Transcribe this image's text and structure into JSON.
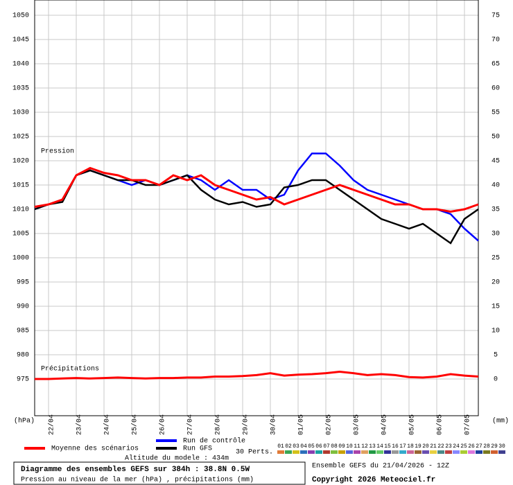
{
  "chart_data": {
    "type": "line",
    "title": "Diagramme des ensembles GEFS sur 384h : 38.8N 0.5W",
    "subtitle": "Pression au niveau de la mer (hPa) , précipitations (mm)",
    "run_label": "Ensemble GEFS du 21/04/2026 - 12Z",
    "copyright": "Copyright 2026 Meteociel.fr",
    "altitude": "Altitude du modele : 434m",
    "y_label": "(hPa)",
    "y2_label": "(mm)",
    "annotations": [
      "Pression",
      "Précipitations"
    ],
    "perturbations_label": "30 Perts.",
    "perturbations": [
      {
        "label": "01",
        "color": "#e07b39"
      },
      {
        "label": "02",
        "color": "#3aa655"
      },
      {
        "label": "03",
        "color": "#d4c21a"
      },
      {
        "label": "04",
        "color": "#2c6fbb"
      },
      {
        "label": "05",
        "color": "#8a3fb0"
      },
      {
        "label": "06",
        "color": "#1aa3a3"
      },
      {
        "label": "07",
        "color": "#b03a2e"
      },
      {
        "label": "08",
        "color": "#7fbf3f"
      },
      {
        "label": "09",
        "color": "#c8a000"
      },
      {
        "label": "10",
        "color": "#5566dd"
      },
      {
        "label": "11",
        "color": "#aa44aa"
      },
      {
        "label": "12",
        "color": "#e0a060"
      },
      {
        "label": "13",
        "color": "#229944"
      },
      {
        "label": "14",
        "color": "#66cc66"
      },
      {
        "label": "15",
        "color": "#333399"
      },
      {
        "label": "16",
        "color": "#999999"
      },
      {
        "label": "17",
        "color": "#33aacc"
      },
      {
        "label": "18",
        "color": "#cc6699"
      },
      {
        "label": "19",
        "color": "#996633"
      },
      {
        "label": "20",
        "color": "#6a4fb0"
      },
      {
        "label": "21",
        "color": "#e8d040"
      },
      {
        "label": "22",
        "color": "#4a8a8a"
      },
      {
        "label": "23",
        "color": "#c04040"
      },
      {
        "label": "24",
        "color": "#8888ff"
      },
      {
        "label": "25",
        "color": "#aacc33"
      },
      {
        "label": "26",
        "color": "#dd77dd"
      },
      {
        "label": "27",
        "color": "#1f3f9f"
      },
      {
        "label": "28",
        "color": "#7a7a20"
      },
      {
        "label": "29",
        "color": "#d06030"
      },
      {
        "label": "30",
        "color": "#404090"
      }
    ],
    "x": [
      0,
      12,
      24,
      36,
      48,
      60,
      72,
      84,
      96,
      108,
      120,
      132,
      144,
      156,
      168,
      180,
      192,
      204,
      216,
      228,
      240,
      252,
      264,
      276,
      288,
      300,
      312,
      324,
      336,
      348,
      360,
      372,
      384
    ],
    "xlim": [
      0,
      384
    ],
    "xticks": [
      {
        "value": 12,
        "label": "22/04"
      },
      {
        "value": 36,
        "label": "23/04"
      },
      {
        "value": 60,
        "label": "24/04"
      },
      {
        "value": 84,
        "label": "25/04"
      },
      {
        "value": 108,
        "label": "26/04"
      },
      {
        "value": 132,
        "label": "27/04"
      },
      {
        "value": 156,
        "label": "28/04"
      },
      {
        "value": 180,
        "label": "29/04"
      },
      {
        "value": 204,
        "label": "30/04"
      },
      {
        "value": 228,
        "label": "01/05"
      },
      {
        "value": 252,
        "label": "02/05"
      },
      {
        "value": 276,
        "label": "03/05"
      },
      {
        "value": 300,
        "label": "04/05"
      },
      {
        "value": 324,
        "label": "05/05"
      },
      {
        "value": 348,
        "label": "06/05"
      },
      {
        "value": 372,
        "label": "07/05"
      }
    ],
    "ylim": [
      967.43,
      1053.14
    ],
    "yticks": [
      975,
      980,
      985,
      990,
      995,
      1000,
      1005,
      1010,
      1015,
      1020,
      1025,
      1030,
      1035,
      1040,
      1045,
      1050
    ],
    "y2lim": [
      -7.57,
      78.14
    ],
    "y2ticks": [
      0,
      5,
      10,
      15,
      20,
      25,
      30,
      35,
      40,
      45,
      50,
      55,
      60,
      65,
      70,
      75
    ],
    "grid": true,
    "series": [
      {
        "name": "Run de contrôle",
        "color": "#0000ff",
        "values": [
          1010,
          1011,
          1012,
          1017,
          1018,
          1017,
          1016,
          1015,
          1016,
          1015,
          1016,
          1017,
          1016,
          1014,
          1016,
          1014,
          1014,
          1012,
          1013,
          1018,
          1021.5,
          1021.5,
          1019,
          1016,
          1014,
          1013,
          1012,
          1011,
          1010,
          1010,
          1009,
          1006,
          1003.5
        ]
      },
      {
        "name": "Run GFS",
        "color": "#000000",
        "values": [
          1010,
          1011,
          1011.5,
          1017,
          1018,
          1017,
          1016,
          1016,
          1015,
          1015,
          1016,
          1017,
          1014,
          1012,
          1011,
          1011.5,
          1010.5,
          1011,
          1014.5,
          1015,
          1016,
          1016,
          1014,
          1012,
          1010,
          1008,
          1007,
          1006,
          1007,
          1005,
          1003,
          1008,
          1010
        ]
      },
      {
        "name": "Moyenne des scénarios",
        "color": "#ff0000",
        "values": [
          1010.5,
          1011,
          1012,
          1017,
          1018.5,
          1017.5,
          1017,
          1016,
          1016,
          1015,
          1017,
          1016,
          1017,
          1015,
          1014,
          1013,
          1012,
          1012.5,
          1011,
          1012,
          1013,
          1014,
          1015,
          1014,
          1013,
          1012,
          1011,
          1011,
          1010,
          1010,
          1009.5,
          1010,
          1011
        ]
      },
      {
        "axis": "y2",
        "color": "#ff0000",
        "values": [
          0,
          0,
          0.1,
          0.2,
          0.1,
          0.2,
          0.3,
          0.2,
          0.1,
          0.2,
          0.2,
          0.3,
          0.3,
          0.5,
          0.5,
          0.6,
          0.8,
          1.2,
          0.7,
          0.9,
          1,
          1.2,
          1.5,
          1.2,
          0.8,
          1,
          0.8,
          0.4,
          0.3,
          0.5,
          1,
          0.7,
          0.5
        ]
      }
    ]
  }
}
